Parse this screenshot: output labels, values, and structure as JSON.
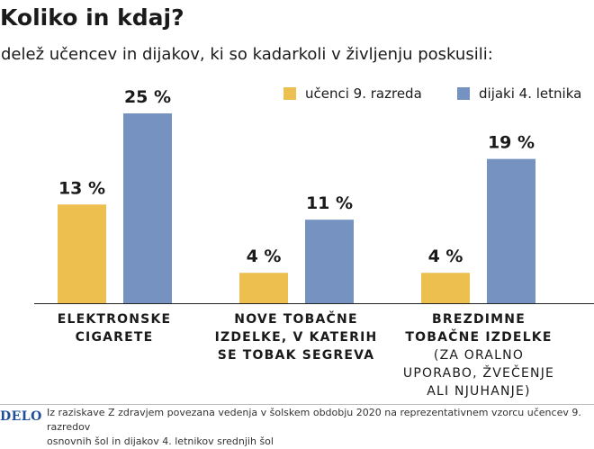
{
  "header": {
    "title": "Koliko in kdaj?",
    "subtitle": "delež učencev in dijakov, ki so kadarkoli v življenju poskusili:"
  },
  "legend": [
    {
      "label": "učenci 9. razreda",
      "color": "#ecbf4f"
    },
    {
      "label": "dijaki 4. letnika",
      "color": "#7592c0"
    }
  ],
  "category_labels": [
    {
      "lines": [
        "ELEKTRONSKE",
        "CIGARETE"
      ],
      "note": []
    },
    {
      "lines": [
        "NOVE TOBAČNE",
        "IZDELKE, V KATERIH",
        "SE TOBAK SEGREVA"
      ],
      "note": []
    },
    {
      "lines": [
        "BREZDIMNE",
        "TOBAČNE IZDELKE"
      ],
      "note": [
        "(ZA ORALNO",
        "UPORABO, ŽVEČENJE",
        "ALI NJUHANJE)"
      ]
    }
  ],
  "footer": {
    "logo": "DELO",
    "source_line1": "Iz raziskave Z zdravjem povezana vedenja v šolskem obdobju 2020 na reprezentativnem vzorcu učencev 9. razredov",
    "source_line2": "osnovnih šol in dijakov 4. letnikov srednjih šol"
  },
  "chart_data": {
    "type": "bar",
    "title": "Koliko in kdaj?",
    "subtitle": "delež učencev in dijakov, ki so kadarkoli v življenju poskusili:",
    "categories": [
      "ELEKTRONSKE CIGARETE",
      "NOVE TOBAČNE IZDELKE, V KATERIH SE TOBAK SEGREVA",
      "BREZDIMNE TOBAČNE IZDELKE (ZA ORALNO UPORABO, ŽVEČENJE ALI NJUHANJE)"
    ],
    "series": [
      {
        "name": "učenci 9. razreda",
        "values": [
          13,
          4,
          4
        ],
        "labels": [
          "13 %",
          "4 %",
          "4 %"
        ],
        "color": "#ecbf4f"
      },
      {
        "name": "dijaki 4. letnika",
        "values": [
          25,
          11,
          19
        ],
        "labels": [
          "25 %",
          "11 %",
          "19 %"
        ],
        "color": "#7592c0"
      }
    ],
    "unit": "%",
    "ylim": [
      0,
      25
    ],
    "grid": false,
    "legend_position": "top-right",
    "xlabel": "",
    "ylabel": ""
  }
}
